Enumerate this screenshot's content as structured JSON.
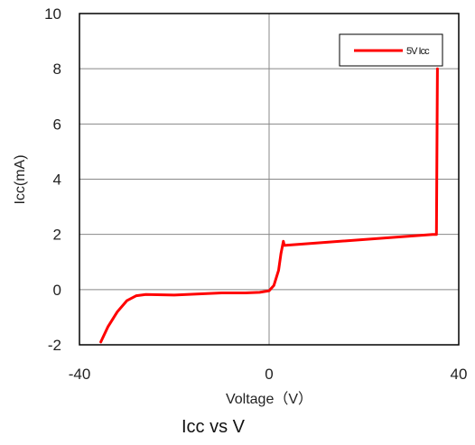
{
  "chart_data": {
    "type": "line",
    "title": "",
    "caption": "Icc  vs   V",
    "xlabel": "Voltage（V）",
    "ylabel": "Icc(mA)",
    "xlim": [
      -40,
      40
    ],
    "ylim": [
      -2,
      10
    ],
    "x_ticks": [
      "-40",
      "0",
      "40"
    ],
    "y_ticks": [
      "-2",
      "0",
      "2",
      "4",
      "6",
      "8",
      "10"
    ],
    "grid": true,
    "legend_position": "top-right",
    "series": [
      {
        "name": "5V Icc",
        "color": "#ff0000",
        "x": [
          -35.5,
          -34,
          -32,
          -30,
          -28,
          -26,
          -20,
          -10,
          -5,
          -2,
          0,
          1,
          2,
          2.5,
          3,
          3.2,
          34.5,
          35.3,
          35.5
        ],
        "y": [
          -1.9,
          -1.35,
          -0.8,
          -0.4,
          -0.22,
          -0.18,
          -0.2,
          -0.12,
          -0.12,
          -0.1,
          -0.04,
          0.15,
          0.7,
          1.3,
          1.75,
          1.6,
          2.0,
          2.0,
          8.0
        ]
      }
    ]
  }
}
